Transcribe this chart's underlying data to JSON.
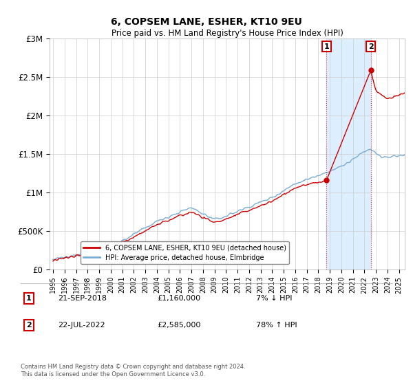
{
  "title": "6, COPSEM LANE, ESHER, KT10 9EU",
  "subtitle": "Price paid vs. HM Land Registry's House Price Index (HPI)",
  "legend_line1": "6, COPSEM LANE, ESHER, KT10 9EU (detached house)",
  "legend_line2": "HPI: Average price, detached house, Elmbridge",
  "annotation1_date": "21-SEP-2018",
  "annotation1_price": "£1,160,000",
  "annotation1_hpi": "7% ↓ HPI",
  "annotation1_year": 2018.72,
  "annotation1_value": 1160000,
  "annotation2_date": "22-JUL-2022",
  "annotation2_price": "£2,585,000",
  "annotation2_hpi": "78% ↑ HPI",
  "annotation2_year": 2022.55,
  "annotation2_value": 2585000,
  "price_color": "#cc0000",
  "hpi_color": "#7aadd4",
  "shade_color": "#ddeeff",
  "ylim": [
    0,
    3000000
  ],
  "yticks": [
    0,
    500000,
    1000000,
    1500000,
    2000000,
    2500000,
    3000000
  ],
  "ytick_labels": [
    "£0",
    "£500K",
    "£1M",
    "£1.5M",
    "£2M",
    "£2.5M",
    "£3M"
  ],
  "footer": "Contains HM Land Registry data © Crown copyright and database right 2024.\nThis data is licensed under the Open Government Licence v3.0.",
  "background_color": "#ffffff",
  "grid_color": "#cccccc",
  "xstart": 1995,
  "xend": 2025
}
